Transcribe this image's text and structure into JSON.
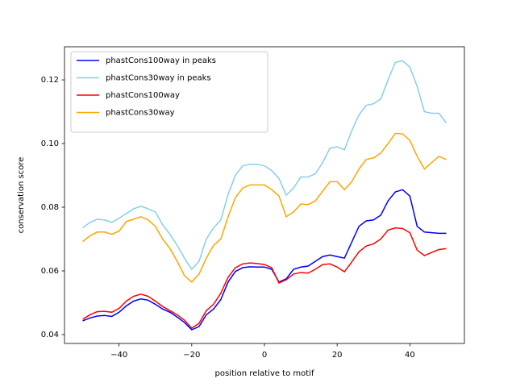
{
  "chart_data": {
    "type": "line",
    "xlabel": "position relative to motif",
    "ylabel": "conservation score",
    "x": [
      -50,
      -48,
      -46,
      -44,
      -42,
      -40,
      -38,
      -36,
      -34,
      -32,
      -30,
      -28,
      -26,
      -24,
      -22,
      -20,
      -18,
      -16,
      -14,
      -12,
      -10,
      -8,
      -6,
      -4,
      -2,
      0,
      2,
      4,
      6,
      8,
      10,
      12,
      14,
      16,
      18,
      20,
      22,
      24,
      26,
      28,
      30,
      32,
      34,
      36,
      38,
      40,
      42,
      44,
      46,
      48,
      50
    ],
    "series": [
      {
        "name": "phastCons100way in peaks",
        "color": "#0000ff",
        "values": [
          0.0443,
          0.0452,
          0.0458,
          0.046,
          0.0457,
          0.047,
          0.049,
          0.0505,
          0.0512,
          0.0508,
          0.0495,
          0.048,
          0.047,
          0.0455,
          0.0438,
          0.0415,
          0.0425,
          0.0462,
          0.048,
          0.051,
          0.0565,
          0.0598,
          0.061,
          0.0613,
          0.0612,
          0.0612,
          0.0605,
          0.0565,
          0.0575,
          0.0605,
          0.0612,
          0.0615,
          0.063,
          0.0645,
          0.065,
          0.0645,
          0.064,
          0.069,
          0.074,
          0.0757,
          0.076,
          0.0775,
          0.082,
          0.0848,
          0.0855,
          0.0835,
          0.074,
          0.0722,
          0.072,
          0.0718,
          0.0718
        ]
      },
      {
        "name": "phastCons30way in peaks",
        "color": "#87ceeb",
        "values": [
          0.0735,
          0.0752,
          0.0762,
          0.076,
          0.0752,
          0.0765,
          0.078,
          0.0795,
          0.0803,
          0.0795,
          0.0785,
          0.0745,
          0.0715,
          0.068,
          0.064,
          0.0605,
          0.063,
          0.07,
          0.0735,
          0.076,
          0.084,
          0.09,
          0.093,
          0.0935,
          0.0935,
          0.093,
          0.0915,
          0.089,
          0.0838,
          0.086,
          0.0895,
          0.0895,
          0.0905,
          0.094,
          0.0985,
          0.099,
          0.098,
          0.104,
          0.109,
          0.112,
          0.1125,
          0.114,
          0.12,
          0.1255,
          0.126,
          0.124,
          0.118,
          0.11,
          0.1095,
          0.1095,
          0.1065
        ]
      },
      {
        "name": "phastCons100way",
        "color": "#ff0000",
        "values": [
          0.0448,
          0.0462,
          0.0472,
          0.0473,
          0.047,
          0.0482,
          0.0505,
          0.052,
          0.0527,
          0.052,
          0.0505,
          0.0488,
          0.0475,
          0.0462,
          0.0445,
          0.042,
          0.0435,
          0.0475,
          0.0495,
          0.053,
          0.058,
          0.061,
          0.0622,
          0.0625,
          0.0623,
          0.062,
          0.061,
          0.0562,
          0.0572,
          0.059,
          0.0595,
          0.0593,
          0.0605,
          0.062,
          0.0622,
          0.0612,
          0.0597,
          0.0628,
          0.066,
          0.0678,
          0.0685,
          0.07,
          0.0728,
          0.0735,
          0.0733,
          0.072,
          0.0665,
          0.0648,
          0.0658,
          0.0667,
          0.067
        ]
      },
      {
        "name": "phastCons30way",
        "color": "#ffa500",
        "values": [
          0.0692,
          0.071,
          0.0722,
          0.0722,
          0.0715,
          0.0725,
          0.0755,
          0.0762,
          0.077,
          0.076,
          0.074,
          0.07,
          0.067,
          0.063,
          0.0585,
          0.0565,
          0.059,
          0.064,
          0.068,
          0.07,
          0.077,
          0.083,
          0.086,
          0.087,
          0.087,
          0.087,
          0.0855,
          0.0835,
          0.077,
          0.0785,
          0.081,
          0.0808,
          0.082,
          0.085,
          0.088,
          0.088,
          0.0855,
          0.088,
          0.092,
          0.095,
          0.0955,
          0.097,
          0.1,
          0.1032,
          0.103,
          0.101,
          0.096,
          0.092,
          0.094,
          0.096,
          0.095
        ]
      }
    ],
    "xlim": [
      -55,
      55
    ],
    "xticks": [
      {
        "value": -40,
        "label": "−40"
      },
      {
        "value": -20,
        "label": "−20"
      },
      0,
      20,
      40
    ],
    "ylim": [
      0.0372,
      0.1304
    ],
    "yticks": [
      0.04,
      0.06,
      0.08,
      {
        "value": 0.1,
        "label": "0.10"
      },
      0.12
    ],
    "legend": "upper left"
  }
}
